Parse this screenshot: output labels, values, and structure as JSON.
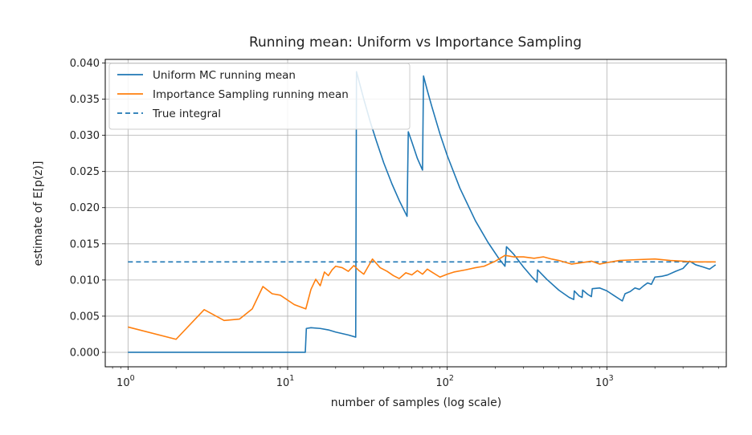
{
  "chart_data": {
    "type": "line",
    "title": "Running mean: Uniform vs Importance Sampling",
    "xlabel": "number of samples (log scale)",
    "ylabel": "estimate of E[p(z)]",
    "x_scale": "log",
    "xlim": [
      0.72,
      5600
    ],
    "ylim": [
      -0.002,
      0.0405
    ],
    "x_ticks": [
      {
        "value": 1,
        "base": "10",
        "exp": "0"
      },
      {
        "value": 10,
        "base": "10",
        "exp": "1"
      },
      {
        "value": 100,
        "base": "10",
        "exp": "2"
      },
      {
        "value": 1000,
        "base": "10",
        "exp": "3"
      }
    ],
    "y_ticks": [
      "0.000",
      "0.005",
      "0.010",
      "0.015",
      "0.020",
      "0.025",
      "0.030",
      "0.035",
      "0.040"
    ],
    "grid": true,
    "legend_position": "top-left",
    "colors": {
      "uniform": "#1f77b4",
      "importance": "#ff7f0e",
      "true": "#1f77b4"
    },
    "series": [
      {
        "name": "Uniform MC running mean",
        "color": "#1f77b4",
        "style": "solid",
        "points": [
          [
            1,
            0.0
          ],
          [
            12.9,
            0.0
          ],
          [
            13.1,
            0.0033
          ],
          [
            14,
            0.0034
          ],
          [
            16,
            0.0033
          ],
          [
            18,
            0.0031
          ],
          [
            20,
            0.0028
          ],
          [
            24,
            0.0024
          ],
          [
            26.7,
            0.0021
          ],
          [
            27,
            0.0388
          ],
          [
            28,
            0.0375
          ],
          [
            30,
            0.035
          ],
          [
            33,
            0.0318
          ],
          [
            36,
            0.0292
          ],
          [
            40,
            0.0262
          ],
          [
            45,
            0.0233
          ],
          [
            50,
            0.021
          ],
          [
            56,
            0.0188
          ],
          [
            57,
            0.0305
          ],
          [
            60,
            0.0291
          ],
          [
            65,
            0.0268
          ],
          [
            70,
            0.0252
          ],
          [
            71,
            0.0382
          ],
          [
            75,
            0.0362
          ],
          [
            80,
            0.034
          ],
          [
            90,
            0.0302
          ],
          [
            100,
            0.0272
          ],
          [
            120,
            0.0227
          ],
          [
            150,
            0.0182
          ],
          [
            180,
            0.0152
          ],
          [
            210,
            0.013
          ],
          [
            230,
            0.0119
          ],
          [
            235,
            0.0146
          ],
          [
            260,
            0.0136
          ],
          [
            300,
            0.0118
          ],
          [
            340,
            0.0104
          ],
          [
            365,
            0.0097
          ],
          [
            368,
            0.0114
          ],
          [
            420,
            0.0101
          ],
          [
            500,
            0.0086
          ],
          [
            580,
            0.0076
          ],
          [
            620,
            0.0073
          ],
          [
            625,
            0.0085
          ],
          [
            670,
            0.0078
          ],
          [
            700,
            0.0076
          ],
          [
            705,
            0.0086
          ],
          [
            760,
            0.008
          ],
          [
            800,
            0.0077
          ],
          [
            810,
            0.0088
          ],
          [
            900,
            0.0089
          ],
          [
            1000,
            0.0085
          ],
          [
            1100,
            0.0079
          ],
          [
            1250,
            0.0071
          ],
          [
            1300,
            0.0081
          ],
          [
            1400,
            0.0084
          ],
          [
            1500,
            0.0089
          ],
          [
            1600,
            0.0087
          ],
          [
            1700,
            0.0092
          ],
          [
            1800,
            0.0096
          ],
          [
            1900,
            0.0094
          ],
          [
            2000,
            0.0104
          ],
          [
            2200,
            0.0105
          ],
          [
            2400,
            0.0107
          ],
          [
            2700,
            0.0112
          ],
          [
            3000,
            0.0116
          ],
          [
            3300,
            0.0126
          ],
          [
            3600,
            0.0121
          ],
          [
            4000,
            0.0118
          ],
          [
            4400,
            0.0115
          ],
          [
            4800,
            0.0121
          ]
        ]
      },
      {
        "name": "Importance Sampling running mean",
        "color": "#ff7f0e",
        "style": "solid",
        "points": [
          [
            1,
            0.0035
          ],
          [
            2,
            0.0018
          ],
          [
            3,
            0.0059
          ],
          [
            4,
            0.0044
          ],
          [
            5,
            0.0046
          ],
          [
            6,
            0.006
          ],
          [
            7,
            0.0091
          ],
          [
            8,
            0.0081
          ],
          [
            9,
            0.0079
          ],
          [
            11,
            0.0066
          ],
          [
            13,
            0.006
          ],
          [
            14,
            0.0087
          ],
          [
            15,
            0.0101
          ],
          [
            16,
            0.0092
          ],
          [
            17,
            0.0111
          ],
          [
            18,
            0.0106
          ],
          [
            19,
            0.0114
          ],
          [
            20,
            0.0119
          ],
          [
            22,
            0.0117
          ],
          [
            24,
            0.0112
          ],
          [
            26,
            0.012
          ],
          [
            28,
            0.0113
          ],
          [
            30,
            0.0108
          ],
          [
            34,
            0.0129
          ],
          [
            38,
            0.0117
          ],
          [
            42,
            0.0112
          ],
          [
            46,
            0.0106
          ],
          [
            50,
            0.0102
          ],
          [
            55,
            0.011
          ],
          [
            60,
            0.0107
          ],
          [
            65,
            0.0113
          ],
          [
            70,
            0.0108
          ],
          [
            75,
            0.0115
          ],
          [
            80,
            0.0111
          ],
          [
            90,
            0.0104
          ],
          [
            100,
            0.0108
          ],
          [
            110,
            0.0111
          ],
          [
            130,
            0.0114
          ],
          [
            150,
            0.0117
          ],
          [
            170,
            0.0119
          ],
          [
            200,
            0.0126
          ],
          [
            230,
            0.0134
          ],
          [
            260,
            0.0132
          ],
          [
            300,
            0.0132
          ],
          [
            350,
            0.013
          ],
          [
            400,
            0.0132
          ],
          [
            450,
            0.0129
          ],
          [
            500,
            0.0127
          ],
          [
            600,
            0.0122
          ],
          [
            700,
            0.0124
          ],
          [
            800,
            0.0126
          ],
          [
            900,
            0.0122
          ],
          [
            1000,
            0.0124
          ],
          [
            1200,
            0.0127
          ],
          [
            1500,
            0.0128
          ],
          [
            2000,
            0.0129
          ],
          [
            2500,
            0.0127
          ],
          [
            3000,
            0.0126
          ],
          [
            3500,
            0.0125
          ],
          [
            4000,
            0.0125
          ],
          [
            4800,
            0.0125
          ]
        ]
      },
      {
        "name": "True integral",
        "color": "#1f77b4",
        "style": "dashed",
        "points": [
          [
            1,
            0.0125
          ],
          [
            4800,
            0.0125
          ]
        ]
      }
    ]
  }
}
